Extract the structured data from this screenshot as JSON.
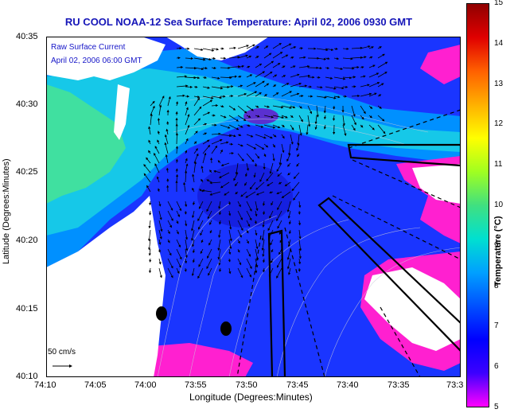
{
  "title": "RU COOL  NOAA-12  Sea Surface Temperature:  April 02, 2006 0930 GMT",
  "legend": {
    "line1": "Raw Surface Current",
    "line2": "April 02, 2006 06:00 GMT"
  },
  "scale": {
    "label": "50 cm/s"
  },
  "axes": {
    "xlabel": "Longitude (Degrees:Minutes)",
    "ylabel": "Latitude (Degrees:Minutes)",
    "xticks": [
      "74:10",
      "74:05",
      "74:00",
      "73:55",
      "73:50",
      "73:45",
      "73:40",
      "73:35",
      "73:3"
    ],
    "yticks": [
      "40:35",
      "40:30",
      "40:25",
      "40:20",
      "40:15",
      "40:10"
    ]
  },
  "colorbar": {
    "label": "Temperature (°C)",
    "ticks": [
      "15",
      "14",
      "13",
      "12",
      "11",
      "10",
      "9",
      "8",
      "7",
      "6",
      "5"
    ],
    "colors": [
      "#ff00ff",
      "#3c00ff",
      "#0000ff",
      "#0050ff",
      "#00a0ff",
      "#00e0d0",
      "#40e080",
      "#a0ff20",
      "#ffff00",
      "#ffb000",
      "#ff6000",
      "#e00000",
      "#900000"
    ]
  }
}
